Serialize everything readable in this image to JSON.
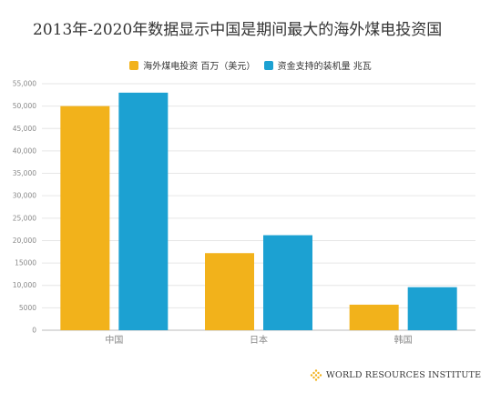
{
  "title": "2013年-2020年数据显示中国是期间最大的海外煤电投资国",
  "legend": [
    {
      "label": "海外煤电投资 百万（美元）",
      "color": "#f2b21b"
    },
    {
      "label": "资金支持的装机量 兆瓦",
      "color": "#1ca1d2"
    }
  ],
  "footer": {
    "org_name": "WORLD RESOURCES INSTITUTE",
    "logo_color": "#f2b21b"
  },
  "chart_data": {
    "type": "bar",
    "title": "2013年-2020年数据显示中国是期间最大的海外煤电投资国",
    "categories": [
      "中国",
      "日本",
      "韩国"
    ],
    "series": [
      {
        "name": "海外煤电投资 百万（美元）",
        "color": "#f2b21b",
        "values": [
          50000,
          17200,
          5700
        ]
      },
      {
        "name": "资金支持的装机量 兆瓦",
        "color": "#1ca1d2",
        "values": [
          53000,
          21200,
          9600
        ]
      }
    ],
    "y_ticks": [
      "0",
      "5000",
      "10,000",
      "15000",
      "20,000",
      "25,000",
      "30,000",
      "35,000",
      "40,000",
      "45,000",
      "50,000",
      "55,000"
    ],
    "ylim": [
      0,
      55000
    ],
    "grid": true,
    "legend_position": "top"
  }
}
